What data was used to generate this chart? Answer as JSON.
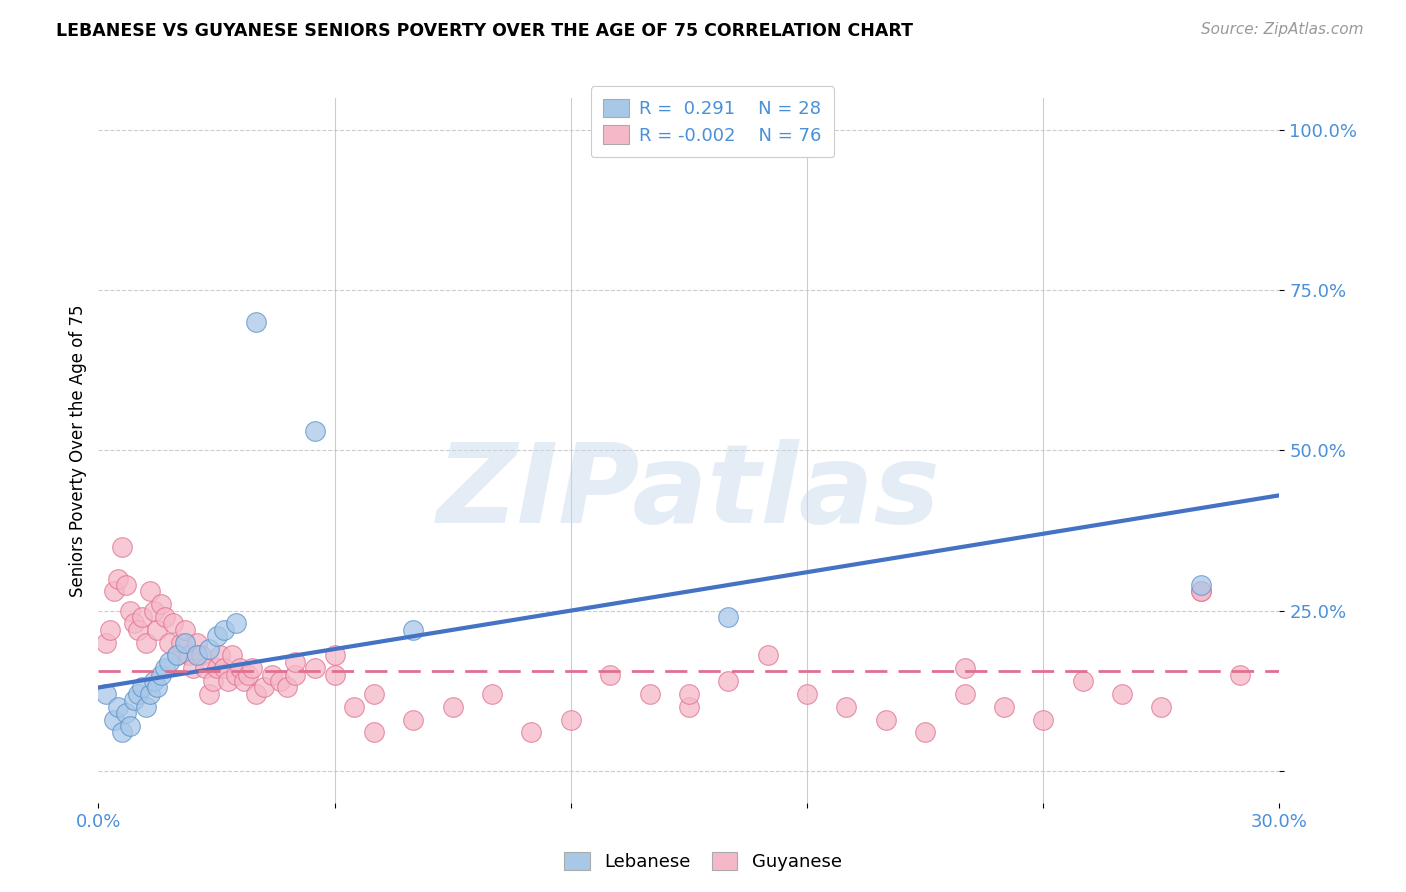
{
  "title": "LEBANESE VS GUYANESE SENIORS POVERTY OVER THE AGE OF 75 CORRELATION CHART",
  "source": "Source: ZipAtlas.com",
  "ylabel": "Seniors Poverty Over the Age of 75",
  "xlim": [
    0.0,
    0.3
  ],
  "ylim": [
    -0.05,
    1.05
  ],
  "yticks": [
    0.0,
    0.25,
    0.5,
    0.75,
    1.0
  ],
  "ytick_labels": [
    "",
    "25.0%",
    "50.0%",
    "75.0%",
    "100.0%"
  ],
  "xticks": [
    0.0,
    0.06,
    0.12,
    0.18,
    0.24,
    0.3
  ],
  "xtick_labels": [
    "0.0%",
    "",
    "",
    "",
    "",
    "30.0%"
  ],
  "lebanese_color": "#a8c8e8",
  "guyanese_color": "#f5b8c8",
  "lebanese_edge_color": "#5b8fc9",
  "guyanese_edge_color": "#e07090",
  "lebanese_line_color": "#4472c4",
  "guyanese_line_color": "#e07090",
  "watermark": "ZIPatlas",
  "lebanese_x": [
    0.002,
    0.004,
    0.005,
    0.006,
    0.007,
    0.008,
    0.009,
    0.01,
    0.011,
    0.012,
    0.013,
    0.014,
    0.015,
    0.016,
    0.017,
    0.018,
    0.02,
    0.022,
    0.025,
    0.028,
    0.03,
    0.032,
    0.035,
    0.04,
    0.055,
    0.08,
    0.16,
    0.28
  ],
  "lebanese_y": [
    0.12,
    0.08,
    0.1,
    0.06,
    0.09,
    0.07,
    0.11,
    0.12,
    0.13,
    0.1,
    0.12,
    0.14,
    0.13,
    0.15,
    0.16,
    0.17,
    0.18,
    0.2,
    0.18,
    0.19,
    0.21,
    0.22,
    0.23,
    0.7,
    0.53,
    0.22,
    0.24,
    0.29
  ],
  "guyanese_x": [
    0.002,
    0.003,
    0.004,
    0.005,
    0.006,
    0.007,
    0.008,
    0.009,
    0.01,
    0.011,
    0.012,
    0.013,
    0.014,
    0.015,
    0.016,
    0.017,
    0.018,
    0.019,
    0.02,
    0.021,
    0.022,
    0.023,
    0.024,
    0.025,
    0.026,
    0.027,
    0.028,
    0.029,
    0.03,
    0.031,
    0.032,
    0.033,
    0.034,
    0.035,
    0.036,
    0.037,
    0.038,
    0.039,
    0.04,
    0.042,
    0.044,
    0.046,
    0.048,
    0.05,
    0.055,
    0.06,
    0.065,
    0.07,
    0.08,
    0.09,
    0.1,
    0.11,
    0.12,
    0.13,
    0.14,
    0.15,
    0.16,
    0.17,
    0.18,
    0.19,
    0.2,
    0.21,
    0.22,
    0.23,
    0.24,
    0.25,
    0.26,
    0.27,
    0.28,
    0.29,
    0.05,
    0.06,
    0.07,
    0.15,
    0.22,
    0.28
  ],
  "guyanese_y": [
    0.2,
    0.22,
    0.28,
    0.3,
    0.35,
    0.29,
    0.25,
    0.23,
    0.22,
    0.24,
    0.2,
    0.28,
    0.25,
    0.22,
    0.26,
    0.24,
    0.2,
    0.23,
    0.18,
    0.2,
    0.22,
    0.18,
    0.16,
    0.2,
    0.18,
    0.16,
    0.12,
    0.14,
    0.16,
    0.18,
    0.16,
    0.14,
    0.18,
    0.15,
    0.16,
    0.14,
    0.15,
    0.16,
    0.12,
    0.13,
    0.15,
    0.14,
    0.13,
    0.15,
    0.16,
    0.15,
    0.1,
    0.12,
    0.08,
    0.1,
    0.12,
    0.06,
    0.08,
    0.15,
    0.12,
    0.1,
    0.14,
    0.18,
    0.12,
    0.1,
    0.08,
    0.06,
    0.12,
    0.1,
    0.08,
    0.14,
    0.12,
    0.1,
    0.28,
    0.15,
    0.17,
    0.18,
    0.06,
    0.12,
    0.16,
    0.28
  ],
  "leb_line_x": [
    0.0,
    0.3
  ],
  "leb_line_y": [
    0.13,
    0.43
  ],
  "guy_line_x": [
    0.0,
    0.3
  ],
  "guy_line_y": [
    0.155,
    0.155
  ]
}
